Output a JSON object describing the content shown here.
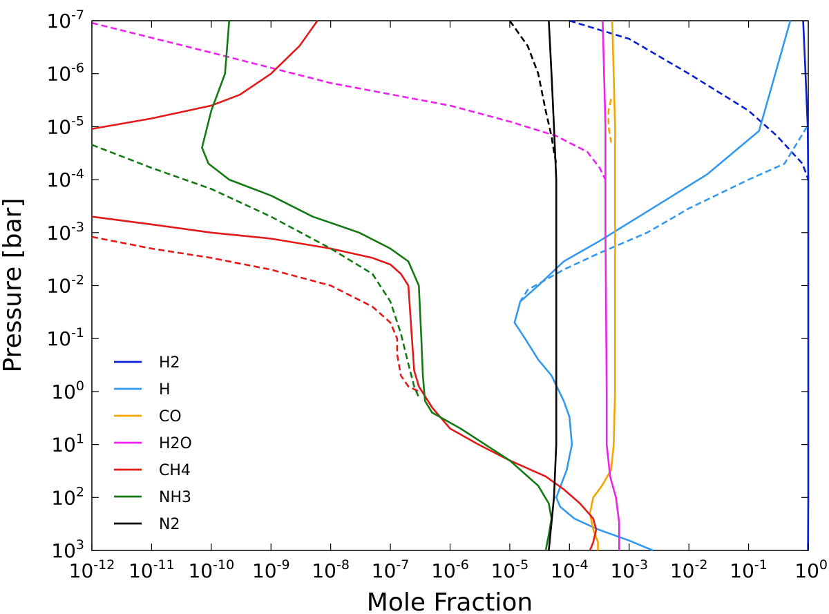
{
  "chart_data": {
    "type": "line",
    "title": "",
    "xlabel": "Mole Fraction",
    "ylabel": "Pressure [bar]",
    "xscale": "log",
    "yscale": "log",
    "y_inverted": true,
    "xlim": [
      1e-12,
      1
    ],
    "ylim": [
      1000,
      1e-07
    ],
    "grid": false,
    "legend_position": "lower-left",
    "x_ticks": [
      {
        "base": "10",
        "exp": "-12"
      },
      {
        "base": "10",
        "exp": "-11"
      },
      {
        "base": "10",
        "exp": "-10"
      },
      {
        "base": "10",
        "exp": "-9"
      },
      {
        "base": "10",
        "exp": "-8"
      },
      {
        "base": "10",
        "exp": "-7"
      },
      {
        "base": "10",
        "exp": "-6"
      },
      {
        "base": "10",
        "exp": "-5"
      },
      {
        "base": "10",
        "exp": "-4"
      },
      {
        "base": "10",
        "exp": "-3"
      },
      {
        "base": "10",
        "exp": "-2"
      },
      {
        "base": "10",
        "exp": "-1"
      },
      {
        "base": "10",
        "exp": "0"
      }
    ],
    "y_ticks": [
      {
        "base": "10",
        "exp": "-7"
      },
      {
        "base": "10",
        "exp": "-6"
      },
      {
        "base": "10",
        "exp": "-5"
      },
      {
        "base": "10",
        "exp": "-4"
      },
      {
        "base": "10",
        "exp": "-3"
      },
      {
        "base": "10",
        "exp": "-2"
      },
      {
        "base": "10",
        "exp": "-1"
      },
      {
        "base": "10",
        "exp": "0"
      },
      {
        "base": "10",
        "exp": "1"
      },
      {
        "base": "10",
        "exp": "2"
      },
      {
        "base": "10",
        "exp": "3"
      }
    ],
    "legend": [
      {
        "label": "H2",
        "color": "#0a1ed2"
      },
      {
        "label": "H",
        "color": "#3399ee"
      },
      {
        "label": "CO",
        "color": "#f5a500"
      },
      {
        "label": "H2O",
        "color": "#ee22ee"
      },
      {
        "label": "CH4",
        "color": "#e21a1a"
      },
      {
        "label": "NH3",
        "color": "#137a13"
      },
      {
        "label": "N2",
        "color": "#000000"
      }
    ],
    "series": [
      {
        "name": "H2",
        "style": "solid",
        "color": "#0a1ed2",
        "points": [
          [
            0.82,
            1e-07
          ],
          [
            0.9,
            1e-06
          ],
          [
            0.98,
            1e-05
          ],
          [
            1.0,
            0.0001
          ],
          [
            1.0,
            0.001
          ],
          [
            1.0,
            0.01
          ],
          [
            1.0,
            1
          ],
          [
            1.0,
            100
          ],
          [
            0.99,
            1000
          ]
        ]
      },
      {
        "name": "H2",
        "style": "dashed",
        "color": "#0a1ed2",
        "points": [
          [
            0.0001,
            1e-07
          ],
          [
            0.001,
            2.2e-07
          ],
          [
            0.01,
            1e-06
          ],
          [
            0.1,
            5e-06
          ],
          [
            0.3,
            1.5e-05
          ],
          [
            0.8,
            5e-05
          ],
          [
            1.0,
            0.0001
          ]
        ]
      },
      {
        "name": "H",
        "style": "solid",
        "color": "#3399ee",
        "points": [
          [
            0.5,
            1e-07
          ],
          [
            0.15,
            1.2e-05
          ],
          [
            0.02,
            8e-05
          ],
          [
            0.002,
            0.0004
          ],
          [
            0.0003,
            0.0015
          ],
          [
            8e-05,
            0.0035
          ],
          [
            3e-05,
            0.01
          ],
          [
            1.5e-05,
            0.02
          ],
          [
            1.2e-05,
            0.05
          ],
          [
            1.8e-05,
            0.1
          ],
          [
            3e-05,
            0.25
          ],
          [
            5e-05,
            0.5
          ],
          [
            8e-05,
            1.5
          ],
          [
            0.0001,
            3
          ],
          [
            0.00011,
            10
          ],
          [
            9e-05,
            30
          ],
          [
            6e-05,
            100
          ],
          [
            7e-05,
            150
          ],
          [
            0.00012,
            250
          ],
          [
            0.0003,
            400
          ],
          [
            0.001,
            650
          ],
          [
            0.0025,
            1000
          ]
        ]
      },
      {
        "name": "H",
        "style": "dashed",
        "color": "#3399ee",
        "points": [
          [
            0.95,
            1e-05
          ],
          [
            0.4,
            5e-05
          ],
          [
            0.1,
            0.0001
          ],
          [
            0.01,
            0.00035
          ],
          [
            0.002,
            0.001
          ],
          [
            0.0003,
            0.0025
          ],
          [
            8e-05,
            0.005
          ],
          [
            2e-05,
            0.012
          ],
          [
            1.5e-05,
            0.02
          ]
        ]
      },
      {
        "name": "CO",
        "style": "solid",
        "color": "#f5a500",
        "points": [
          [
            0.00052,
            1e-07
          ],
          [
            0.00055,
            1e-06
          ],
          [
            0.00058,
            1e-05
          ],
          [
            0.00058,
            0.001
          ],
          [
            0.00058,
            1
          ],
          [
            0.00055,
            10
          ],
          [
            0.0005,
            30
          ],
          [
            0.00035,
            60
          ],
          [
            0.00025,
            100
          ],
          [
            0.00022,
            200
          ],
          [
            0.00025,
            400
          ],
          [
            0.0003,
            700
          ],
          [
            0.0003,
            1000
          ]
        ]
      },
      {
        "name": "CO",
        "style": "dashed",
        "color": "#f5a500",
        "points": [
          [
            0.0005,
            3e-06
          ],
          [
            0.00045,
            5e-06
          ],
          [
            0.00045,
            1e-05
          ],
          [
            0.0005,
            2e-05
          ]
        ]
      },
      {
        "name": "H2O",
        "style": "solid",
        "color": "#ee22ee",
        "points": [
          [
            0.00036,
            1e-07
          ],
          [
            0.00038,
            1e-06
          ],
          [
            0.0004,
            1e-05
          ],
          [
            0.0004,
            0.001
          ],
          [
            0.00042,
            1
          ],
          [
            0.00042,
            10
          ],
          [
            0.00048,
            40
          ],
          [
            0.0006,
            100
          ],
          [
            0.00068,
            300
          ],
          [
            0.00068,
            1000
          ]
        ]
      },
      {
        "name": "H2O",
        "style": "dashed",
        "color": "#ee22ee",
        "points": [
          [
            1e-12,
            1.1e-07
          ],
          [
            1e-10,
            4e-07
          ],
          [
            1e-08,
            1.5e-06
          ],
          [
            1e-06,
            4e-06
          ],
          [
            1e-05,
            8e-06
          ],
          [
            6e-05,
            1.5e-05
          ],
          [
            0.0002,
            3e-05
          ],
          [
            0.00032,
            6e-05
          ],
          [
            0.0004,
            0.0001
          ]
        ]
      },
      {
        "name": "CH4",
        "style": "solid",
        "color": "#e21a1a",
        "points": [
          [
            1e-12,
            1.1e-05
          ],
          [
            1e-11,
            7e-06
          ],
          [
            1e-10,
            4e-06
          ],
          [
            3e-10,
            2.5e-06
          ],
          [
            1e-09,
            1e-06
          ],
          [
            3e-09,
            3e-07
          ],
          [
            6e-09,
            1e-07
          ]
        ]
      },
      {
        "name": "CH4",
        "style": "solid",
        "color": "#e21a1a",
        "points": [
          [
            1e-12,
            0.0005
          ],
          [
            1e-11,
            0.0007
          ],
          [
            1e-10,
            0.001
          ],
          [
            1e-09,
            0.0013
          ],
          [
            1e-08,
            0.002
          ],
          [
            5e-08,
            0.003
          ],
          [
            1e-07,
            0.004
          ],
          [
            1.5e-07,
            0.006
          ],
          [
            2e-07,
            0.01
          ],
          [
            2.3e-07,
            0.1
          ],
          [
            2.5e-07,
            0.4
          ],
          [
            3e-07,
            0.8
          ],
          [
            5e-07,
            2
          ],
          [
            1e-06,
            5
          ],
          [
            3e-06,
            10
          ],
          [
            1e-05,
            20
          ],
          [
            4e-05,
            40
          ],
          [
            8e-05,
            70
          ],
          [
            0.00015,
            130
          ],
          [
            0.00025,
            250
          ],
          [
            0.00028,
            400
          ],
          [
            0.00025,
            700
          ],
          [
            0.00022,
            1000
          ]
        ]
      },
      {
        "name": "CH4",
        "style": "dashed",
        "color": "#e21a1a",
        "points": [
          [
            1e-12,
            0.0012
          ],
          [
            1e-11,
            0.002
          ],
          [
            1e-10,
            0.003
          ],
          [
            1e-09,
            0.005
          ],
          [
            1e-08,
            0.01
          ],
          [
            5e-08,
            0.025
          ],
          [
            1e-07,
            0.05
          ],
          [
            1.3e-07,
            0.1
          ],
          [
            1.3e-07,
            0.2
          ],
          [
            1.5e-07,
            0.5
          ],
          [
            2e-07,
            0.8
          ],
          [
            3e-07,
            1
          ]
        ]
      },
      {
        "name": "NH3",
        "style": "solid",
        "color": "#137a13",
        "points": [
          [
            2e-10,
            1e-07
          ],
          [
            1.7e-10,
            1e-06
          ],
          [
            1e-10,
            5e-06
          ],
          [
            7e-11,
            2.5e-05
          ],
          [
            9e-11,
            5e-05
          ],
          [
            2e-10,
            0.0001
          ],
          [
            1e-09,
            0.0002
          ],
          [
            5e-09,
            0.0005
          ],
          [
            3e-08,
            0.001
          ],
          [
            1e-07,
            0.002
          ],
          [
            2e-07,
            0.0035
          ],
          [
            3e-07,
            0.01
          ],
          [
            3.3e-07,
            0.1
          ],
          [
            3.5e-07,
            0.5
          ],
          [
            3.8e-07,
            1.5
          ],
          [
            5e-07,
            2.5
          ],
          [
            1.5e-06,
            5
          ],
          [
            1e-05,
            20
          ],
          [
            3e-05,
            60
          ],
          [
            4.5e-05,
            130
          ],
          [
            5e-05,
            250
          ],
          [
            4.5e-05,
            500
          ],
          [
            4e-05,
            1000
          ]
        ]
      },
      {
        "name": "NH3",
        "style": "dashed",
        "color": "#137a13",
        "points": [
          [
            1e-12,
            2.2e-05
          ],
          [
            1e-11,
            6e-05
          ],
          [
            1e-10,
            0.00015
          ],
          [
            1e-09,
            0.0005
          ],
          [
            1e-08,
            0.002
          ],
          [
            5e-08,
            0.006
          ],
          [
            1e-07,
            0.02
          ],
          [
            1.5e-07,
            0.08
          ],
          [
            2e-07,
            0.3
          ],
          [
            2.5e-07,
            0.8
          ],
          [
            3e-07,
            1.3
          ]
        ]
      },
      {
        "name": "N2",
        "style": "solid",
        "color": "#000000",
        "points": [
          [
            4.5e-05,
            1e-07
          ],
          [
            5e-05,
            1e-06
          ],
          [
            5.5e-05,
            1e-05
          ],
          [
            6e-05,
            0.0001
          ],
          [
            6e-05,
            0.001
          ],
          [
            6e-05,
            0.01
          ],
          [
            6e-05,
            1
          ],
          [
            6e-05,
            10
          ],
          [
            5.5e-05,
            100
          ],
          [
            5e-05,
            300
          ],
          [
            4.5e-05,
            1000
          ]
        ]
      },
      {
        "name": "N2",
        "style": "dashed",
        "color": "#000000",
        "points": [
          [
            1e-05,
            1e-07
          ],
          [
            2e-05,
            3e-07
          ],
          [
            3e-05,
            1e-06
          ],
          [
            4e-05,
            5e-06
          ],
          [
            5e-05,
            1.5e-05
          ],
          [
            5.5e-05,
            3e-05
          ],
          [
            6e-05,
            5e-05
          ]
        ]
      }
    ]
  }
}
